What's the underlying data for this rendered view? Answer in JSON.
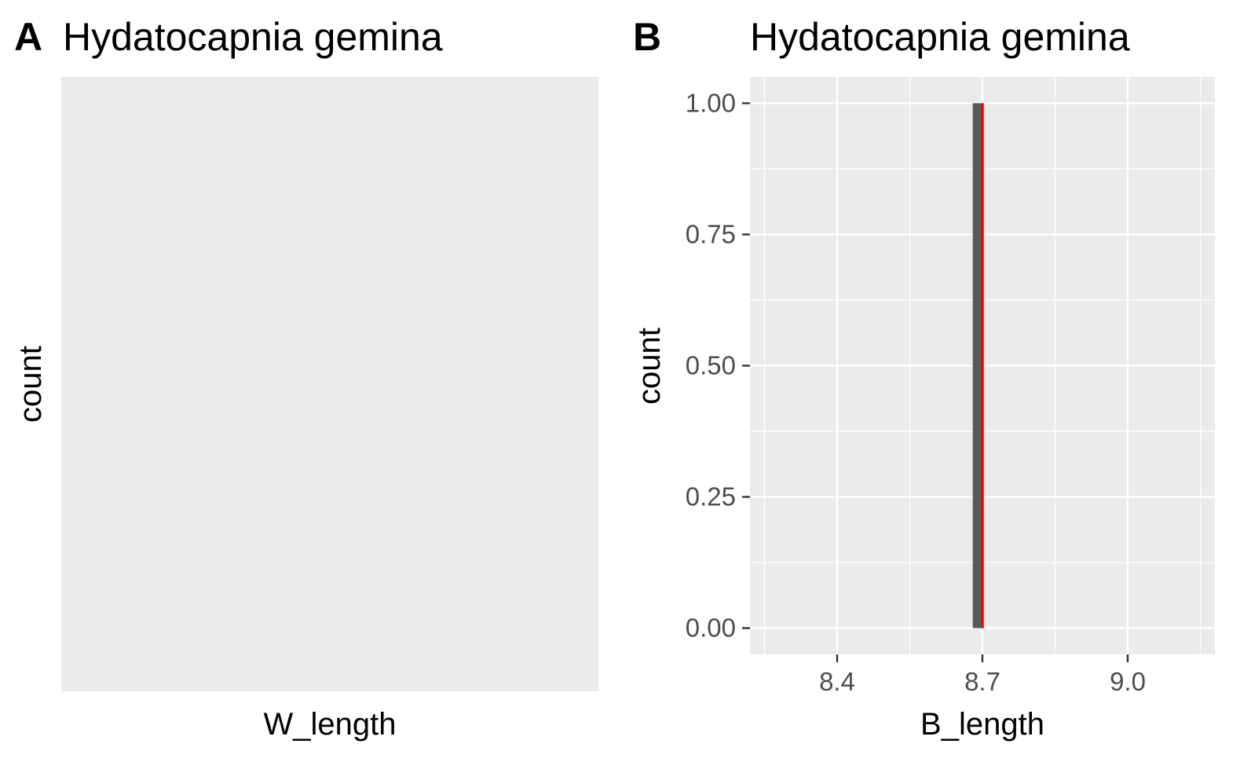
{
  "chart_data": [
    {
      "panel": "A",
      "type": "bar",
      "title": "Hydatocapnia gemina",
      "xlabel": "W_length",
      "ylabel": "count",
      "values": [],
      "grid": false
    },
    {
      "panel": "B",
      "type": "bar",
      "title": "Hydatocapnia gemina",
      "xlabel": "B_length",
      "ylabel": "count",
      "x": [
        8.7
      ],
      "values": [
        1
      ],
      "xlim": [
        8.22,
        9.18
      ],
      "ylim": [
        -0.05,
        1.05
      ],
      "x_ticks": [
        8.4,
        8.7,
        9.0
      ],
      "x_tick_labels": [
        "8.4",
        "8.7",
        "9.0"
      ],
      "y_ticks": [
        0.0,
        0.25,
        0.5,
        0.75,
        1.0
      ],
      "y_tick_labels": [
        "0.00",
        "0.25",
        "0.50",
        "0.75",
        "1.00"
      ],
      "bar_color": "#595959",
      "vline": {
        "x": 8.7,
        "color": "#ff0000"
      },
      "grid": true
    }
  ]
}
